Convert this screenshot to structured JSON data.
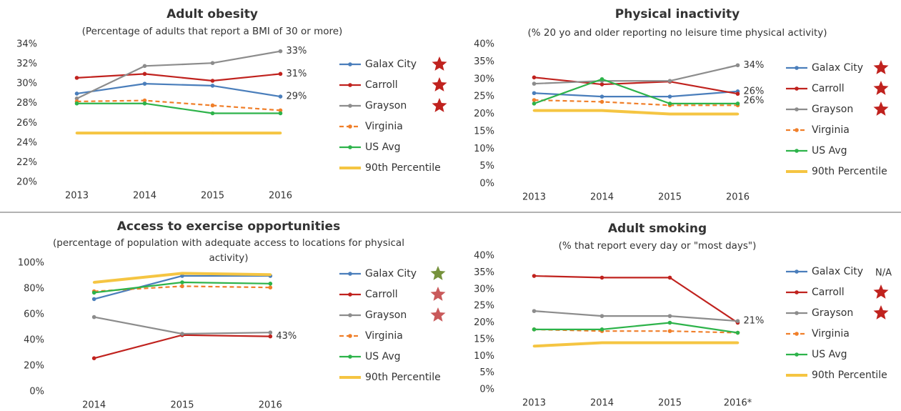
{
  "chart_data": [
    {
      "type": "line",
      "title": "Adult obesity",
      "subtitle": "(Percentage of adults that report a BMI of 30 or more)",
      "categories": [
        "2013",
        "2014",
        "2015",
        "2016"
      ],
      "ylim": [
        20,
        34
      ],
      "yticks": [
        {
          "value": 20,
          "label": "20%"
        },
        {
          "value": 22,
          "label": "22%"
        },
        {
          "value": 24,
          "label": "24%"
        },
        {
          "value": 26,
          "label": "26%"
        },
        {
          "value": 28,
          "label": "28%"
        },
        {
          "value": 30,
          "label": "30%"
        },
        {
          "value": 32,
          "label": "32%"
        },
        {
          "value": 34,
          "label": "34%"
        }
      ],
      "series": [
        {
          "name": "Galax City",
          "color": "#4a7ebb",
          "values": [
            29,
            30,
            29.8,
            28.7
          ],
          "value_labels": [
            null,
            null,
            null,
            "29%"
          ],
          "badge_color": "#c0221e"
        },
        {
          "name": "Carroll",
          "color": "#c0221e",
          "values": [
            30.6,
            31,
            30.3,
            31
          ],
          "value_labels": [
            null,
            null,
            null,
            "31%"
          ],
          "badge_color": "#c0221e"
        },
        {
          "name": "Grayson",
          "color": "#8c8c8c",
          "values": [
            28.5,
            31.8,
            32.1,
            33.3
          ],
          "value_labels": [
            null,
            null,
            null,
            "33%"
          ],
          "badge_color": "#c0221e"
        },
        {
          "name": "Virginia",
          "color": "#f07f2a",
          "dashed": true,
          "values": [
            28.2,
            28.3,
            27.8,
            27.3
          ]
        },
        {
          "name": "US Avg",
          "color": "#2db34a",
          "values": [
            28,
            28,
            27,
            27
          ]
        },
        {
          "name": "90th Percentile",
          "color": "#f5c542",
          "thick": true,
          "values": [
            25,
            25,
            25,
            25
          ]
        }
      ]
    },
    {
      "type": "line",
      "title": "Physical inactivity",
      "subtitle": "(% 20 yo and older reporting no leisure time physical activity)",
      "categories": [
        "2013",
        "2014",
        "2015",
        "2016"
      ],
      "ylim": [
        0,
        40
      ],
      "yticks": [
        {
          "value": 0,
          "label": "0%"
        },
        {
          "value": 5,
          "label": "5%"
        },
        {
          "value": 10,
          "label": "10%"
        },
        {
          "value": 15,
          "label": "15%"
        },
        {
          "value": 20,
          "label": "20%"
        },
        {
          "value": 25,
          "label": "25%"
        },
        {
          "value": 30,
          "label": "30%"
        },
        {
          "value": 35,
          "label": "35%"
        },
        {
          "value": 40,
          "label": "40%"
        }
      ],
      "series": [
        {
          "name": "Galax City",
          "color": "#4a7ebb",
          "values": [
            26,
            25,
            25,
            26.5
          ],
          "value_labels": [
            null,
            null,
            null,
            "26%"
          ],
          "badge_color": "#c0221e"
        },
        {
          "name": "Carroll",
          "color": "#c0221e",
          "values": [
            30.5,
            28.5,
            29.3,
            25.8
          ],
          "value_labels": [
            null,
            null,
            null,
            "26%"
          ],
          "badge_color": "#c0221e"
        },
        {
          "name": "Grayson",
          "color": "#8c8c8c",
          "values": [
            28.7,
            29.5,
            29.5,
            34
          ],
          "value_labels": [
            null,
            null,
            null,
            "34%"
          ],
          "badge_color": "#c0221e"
        },
        {
          "name": "Virginia",
          "color": "#f07f2a",
          "dashed": true,
          "values": [
            24,
            23.5,
            22.5,
            22.5
          ]
        },
        {
          "name": "US Avg",
          "color": "#2db34a",
          "values": [
            23,
            30,
            23,
            23
          ]
        },
        {
          "name": "90th Percentile",
          "color": "#f5c542",
          "thick": true,
          "values": [
            21,
            21,
            20,
            20
          ]
        }
      ]
    },
    {
      "type": "line",
      "title": "Access to exercise opportunities",
      "subtitle": "(percentage of population with adequate access to locations for physical activity)",
      "categories": [
        "2014",
        "2015",
        "2016"
      ],
      "ylim": [
        0,
        100
      ],
      "yticks": [
        {
          "value": 0,
          "label": "0%"
        },
        {
          "value": 20,
          "label": "20%"
        },
        {
          "value": 40,
          "label": "40%"
        },
        {
          "value": 60,
          "label": "60%"
        },
        {
          "value": 80,
          "label": "80%"
        },
        {
          "value": 100,
          "label": "100%"
        }
      ],
      "series": [
        {
          "name": "Galax City",
          "color": "#4a7ebb",
          "values": [
            72,
            90,
            90
          ],
          "badge_color": "#76923c"
        },
        {
          "name": "Carroll",
          "color": "#c0221e",
          "values": [
            26,
            44,
            43
          ],
          "value_labels": [
            null,
            null,
            "43%"
          ],
          "badge_color": "#c9595a"
        },
        {
          "name": "Grayson",
          "color": "#8c8c8c",
          "values": [
            58,
            45,
            46
          ],
          "badge_color": "#c9595a"
        },
        {
          "name": "Virginia",
          "color": "#f07f2a",
          "dashed": true,
          "values": [
            78,
            82,
            81
          ]
        },
        {
          "name": "US Avg",
          "color": "#2db34a",
          "values": [
            77,
            85,
            84
          ]
        },
        {
          "name": "90th Percentile",
          "color": "#f5c542",
          "thick": true,
          "values": [
            85,
            92,
            91
          ]
        }
      ]
    },
    {
      "type": "line",
      "title": "Adult smoking",
      "subtitle": "(% that report every day or \"most days\")",
      "categories": [
        "2013",
        "2014",
        "2015",
        "2016*"
      ],
      "ylim": [
        0,
        40
      ],
      "yticks": [
        {
          "value": 0,
          "label": "0%"
        },
        {
          "value": 5,
          "label": "5%"
        },
        {
          "value": 10,
          "label": "10%"
        },
        {
          "value": 15,
          "label": "15%"
        },
        {
          "value": 20,
          "label": "20%"
        },
        {
          "value": 25,
          "label": "25%"
        },
        {
          "value": 30,
          "label": "30%"
        },
        {
          "value": 35,
          "label": "35%"
        },
        {
          "value": 40,
          "label": "40%"
        }
      ],
      "series": [
        {
          "name": "Galax City",
          "color": "#4a7ebb",
          "values": [
            null,
            null,
            null,
            null
          ],
          "note": "N/A"
        },
        {
          "name": "Carroll",
          "color": "#c0221e",
          "values": [
            34,
            33.5,
            33.5,
            20
          ],
          "badge_color": "#c0221e"
        },
        {
          "name": "Grayson",
          "color": "#8c8c8c",
          "values": [
            23.5,
            22,
            22,
            20.5
          ],
          "value_labels": [
            null,
            null,
            null,
            "21%"
          ],
          "badge_color": "#c0221e"
        },
        {
          "name": "Virginia",
          "color": "#f07f2a",
          "dashed": true,
          "values": [
            18,
            17.5,
            17.5,
            17
          ]
        },
        {
          "name": "US Avg",
          "color": "#2db34a",
          "values": [
            18,
            18,
            20,
            17
          ]
        },
        {
          "name": "90th Percentile",
          "color": "#f5c542",
          "thick": true,
          "values": [
            13,
            14,
            14,
            14
          ]
        }
      ]
    }
  ]
}
